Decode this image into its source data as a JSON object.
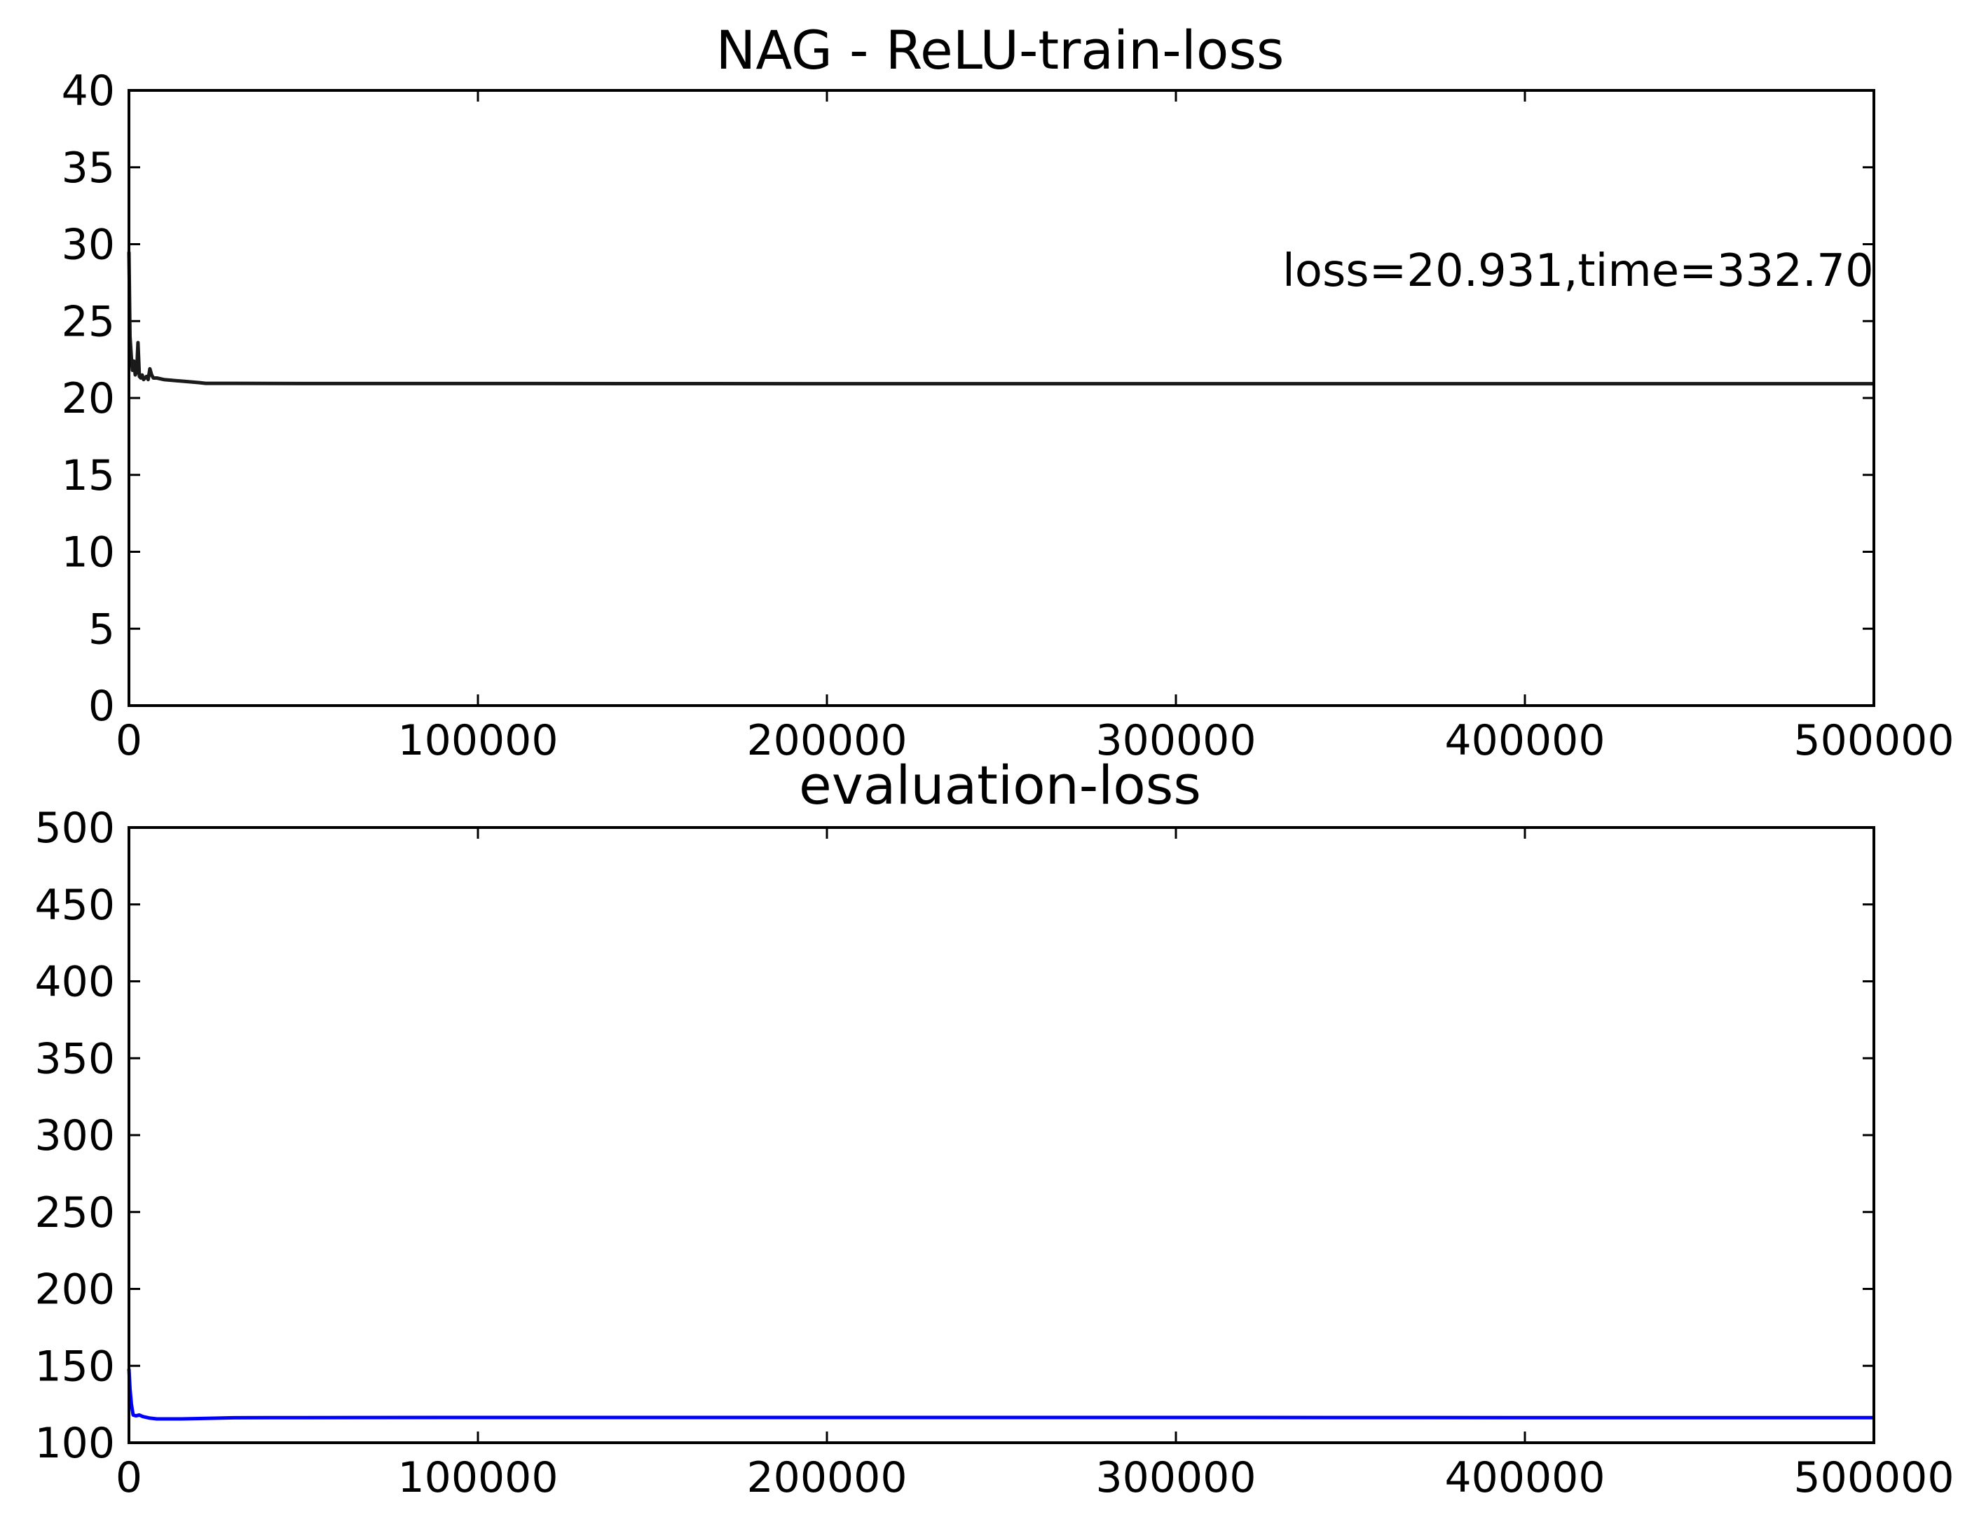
{
  "figure": {
    "background": "#ffffff",
    "frame_color": "#000000"
  },
  "chart_data": [
    {
      "type": "line",
      "title": "NAG - ReLU-train-loss",
      "xlabel": "",
      "ylabel": "",
      "xlim": [
        0,
        500000
      ],
      "ylim": [
        0,
        40
      ],
      "xticks": [
        0,
        100000,
        200000,
        300000,
        400000,
        500000
      ],
      "xtick_labels": [
        "0",
        "100000",
        "200000",
        "300000",
        "400000",
        "500000"
      ],
      "yticks": [
        0,
        5,
        10,
        15,
        20,
        25,
        30,
        35,
        40
      ],
      "ytick_labels": [
        "0",
        "5",
        "10",
        "15",
        "20",
        "25",
        "30",
        "35",
        "40"
      ],
      "grid": false,
      "legend": "none",
      "annotation": "loss=20.931,time=332.70",
      "series": [
        {
          "color": "#1a1a1a",
          "x": [
            0,
            300,
            700,
            1000,
            1400,
            1800,
            2200,
            2600,
            3000,
            3400,
            3800,
            4200,
            4600,
            5000,
            5500,
            6000,
            6500,
            7000,
            8000,
            10000,
            15000,
            20000,
            22000,
            30000,
            50000,
            100000,
            200000,
            300000,
            400000,
            500000
          ],
          "y": [
            29.5,
            24.0,
            22.6,
            21.8,
            22.4,
            21.5,
            21.7,
            23.6,
            21.4,
            21.3,
            21.5,
            21.2,
            21.3,
            21.4,
            21.2,
            21.9,
            21.5,
            21.3,
            21.3,
            21.2,
            21.1,
            21.0,
            20.95,
            20.95,
            20.94,
            20.94,
            20.93,
            20.93,
            20.93,
            20.93
          ]
        }
      ]
    },
    {
      "type": "line",
      "title": "evaluation-loss",
      "xlabel": "",
      "ylabel": "",
      "xlim": [
        0,
        500000
      ],
      "ylim": [
        100,
        500
      ],
      "xticks": [
        0,
        100000,
        200000,
        300000,
        400000,
        500000
      ],
      "xtick_labels": [
        "0",
        "100000",
        "200000",
        "300000",
        "400000",
        "500000"
      ],
      "yticks": [
        100,
        150,
        200,
        250,
        300,
        350,
        400,
        450,
        500
      ],
      "ytick_labels": [
        "100",
        "150",
        "200",
        "250",
        "300",
        "350",
        "400",
        "450",
        "500"
      ],
      "grid": false,
      "legend": "none",
      "series": [
        {
          "color": "#0000ff",
          "x": [
            0,
            300,
            700,
            1200,
            2000,
            3000,
            4000,
            5000,
            6000,
            8000,
            10000,
            15000,
            20000,
            30000,
            50000,
            100000,
            200000,
            300000,
            400000,
            500000
          ],
          "y": [
            148,
            135,
            125,
            118,
            117.5,
            118,
            117,
            116.5,
            116,
            115.5,
            115.5,
            115.5,
            115.7,
            116.2,
            116.3,
            116.4,
            116.4,
            116.4,
            116.3,
            116.3
          ]
        }
      ]
    }
  ]
}
